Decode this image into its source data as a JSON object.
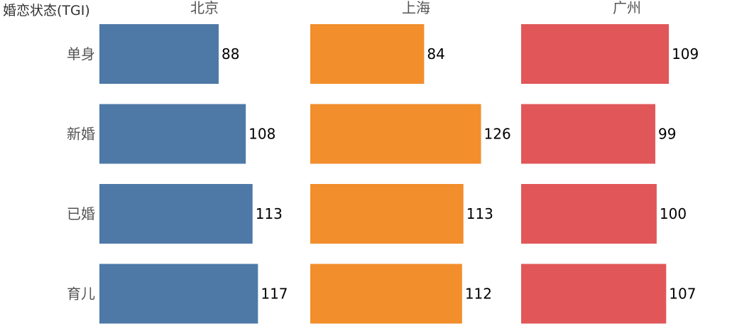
{
  "chart_data": {
    "type": "bar",
    "orientation": "horizontal",
    "row_header": "婚恋状态(TGI)",
    "categories": [
      "单身",
      "新婚",
      "已婚",
      "育儿"
    ],
    "panels": [
      {
        "name": "北京",
        "color": "#4e79a7",
        "values": [
          88,
          108,
          113,
          117
        ]
      },
      {
        "name": "上海",
        "color": "#f28e2b",
        "values": [
          84,
          126,
          113,
          112
        ]
      },
      {
        "name": "广州",
        "color": "#e15759",
        "values": [
          109,
          99,
          100,
          107
        ]
      }
    ],
    "xlim": [
      0,
      140
    ],
    "grid": false,
    "legend": "none"
  }
}
